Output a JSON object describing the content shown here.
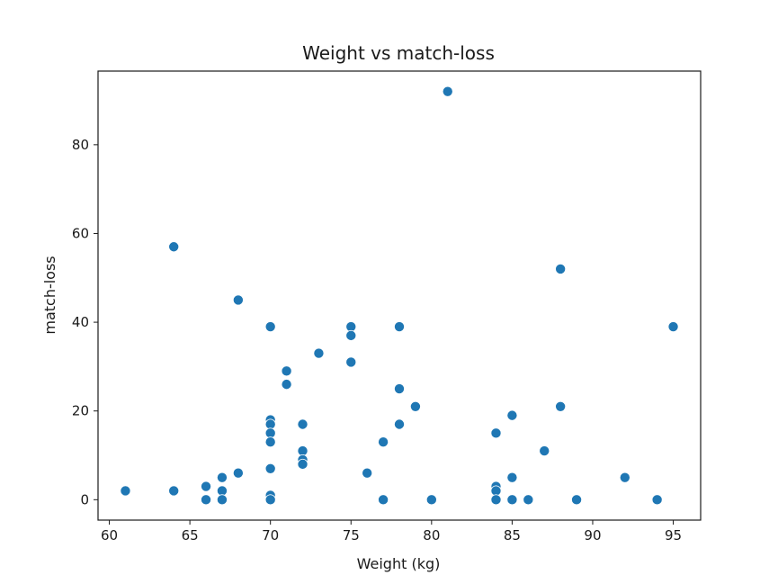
{
  "chart_data": {
    "type": "scatter",
    "title": "Weight vs match-loss",
    "xlabel": "Weight (kg)",
    "ylabel": "match-loss",
    "xlim": [
      59.3,
      96.7
    ],
    "ylim": [
      -4.6,
      96.6
    ],
    "xticks": [
      60,
      65,
      70,
      75,
      80,
      85,
      90,
      95
    ],
    "yticks": [
      0,
      20,
      40,
      60,
      80
    ],
    "grid": false,
    "series": [
      {
        "name": "match-loss",
        "color": "#1f77b4",
        "points": [
          [
            61,
            2
          ],
          [
            64,
            57
          ],
          [
            64,
            2
          ],
          [
            66,
            3
          ],
          [
            66,
            0
          ],
          [
            67,
            5
          ],
          [
            67,
            2
          ],
          [
            67,
            0
          ],
          [
            67,
            0
          ],
          [
            68,
            45
          ],
          [
            68,
            6
          ],
          [
            70,
            39
          ],
          [
            70,
            18
          ],
          [
            70,
            17
          ],
          [
            70,
            15
          ],
          [
            70,
            13
          ],
          [
            70,
            7
          ],
          [
            70,
            1
          ],
          [
            70,
            0
          ],
          [
            71,
            29
          ],
          [
            71,
            26
          ],
          [
            72,
            17
          ],
          [
            72,
            11
          ],
          [
            72,
            9
          ],
          [
            72,
            8
          ],
          [
            73,
            33
          ],
          [
            75,
            39
          ],
          [
            75,
            37
          ],
          [
            75,
            31
          ],
          [
            76,
            6
          ],
          [
            77,
            13
          ],
          [
            77,
            0
          ],
          [
            78,
            39
          ],
          [
            78,
            25
          ],
          [
            78,
            17
          ],
          [
            79,
            21
          ],
          [
            80,
            0
          ],
          [
            81,
            92
          ],
          [
            84,
            15
          ],
          [
            84,
            3
          ],
          [
            84,
            2
          ],
          [
            84,
            0
          ],
          [
            85,
            19
          ],
          [
            85,
            5
          ],
          [
            85,
            0
          ],
          [
            86,
            0
          ],
          [
            87,
            11
          ],
          [
            88,
            52
          ],
          [
            88,
            21
          ],
          [
            89,
            0
          ],
          [
            92,
            5
          ],
          [
            94,
            0
          ],
          [
            95,
            39
          ]
        ]
      }
    ]
  }
}
